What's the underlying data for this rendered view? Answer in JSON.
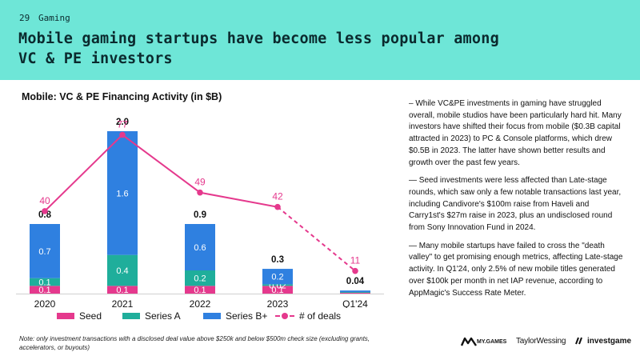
{
  "header": {
    "slide_number": "29",
    "section": "Gaming",
    "title": "Mobile gaming startups have become less popular among VC & PE investors"
  },
  "colors": {
    "header_bg": "#6ee6d7",
    "seed": "#e5398d",
    "series_a": "#1fae9b",
    "series_b_plus": "#2f80e0",
    "deals_line": "#e5398d"
  },
  "chart_data": {
    "type": "bar",
    "title": "Mobile: VC & PE Financing Activity (in $B)",
    "categories": [
      "2020",
      "2021",
      "2022",
      "2023",
      "Q1'24"
    ],
    "series": [
      {
        "name": "Seed",
        "values": [
          0.1,
          0.1,
          0.1,
          0.1,
          0.01
        ],
        "labels": [
          "0.1",
          "0.1",
          "0.1",
          "0.1",
          ""
        ]
      },
      {
        "name": "Series A",
        "values": [
          0.1,
          0.4,
          0.2,
          0.02,
          0.01
        ],
        "labels": [
          "0.1",
          "0.4",
          "0.2",
          "0.02",
          ""
        ]
      },
      {
        "name": "Series B+",
        "values": [
          0.7,
          1.6,
          0.6,
          0.2,
          0.02
        ],
        "labels": [
          "0.7",
          "1.6",
          "0.6",
          "0.2",
          ""
        ]
      }
    ],
    "totals": [
      "0.8",
      "2.0",
      "0.9",
      "0.3",
      "0.04"
    ],
    "line_series": {
      "name": "# of deals",
      "values": [
        40,
        77,
        49,
        42,
        11
      ],
      "dashed_from_index": 3
    },
    "xlabel": "",
    "ylabel": "",
    "ylim": [
      0,
      2.4
    ],
    "line_ylim": [
      0,
      90
    ],
    "legend": [
      "Seed",
      "Series A",
      "Series B+",
      "# of deals"
    ],
    "legend_position": "bottom"
  },
  "note": "Note: only investment transactions with a disclosed deal value above $250k and below $500m check size (excluding grants, accelerators, or buyouts)",
  "bullets": [
    "– While VC&PE investments in gaming have struggled overall, mobile studios have been particularly hard hit. Many investors have shifted their focus from mobile ($0.3B capital attracted in 2023) to PC & Console platforms, which drew $0.5B in 2023. The latter have shown better results and growth over the past few years.",
    "— Seed investments were less affected than Late-stage rounds, which saw only a few notable transactions last year, including Candivore's $100m raise from Haveli and Carry1st's $27m raise in 2023, plus an undisclosed round from Sony Innovation Fund in 2024.",
    "— Many mobile startups have failed to cross the \"death valley\" to get promising enough metrics, affecting Late-stage activity. In Q1'24, only 2.5% of new mobile titles generated over $100k per month in net IAP revenue, according to AppMagic's Success Rate Meter."
  ],
  "logos": {
    "mygames": "MY.GAMES",
    "taylorwessing": "TaylorWessing",
    "investgame": "investgame"
  }
}
